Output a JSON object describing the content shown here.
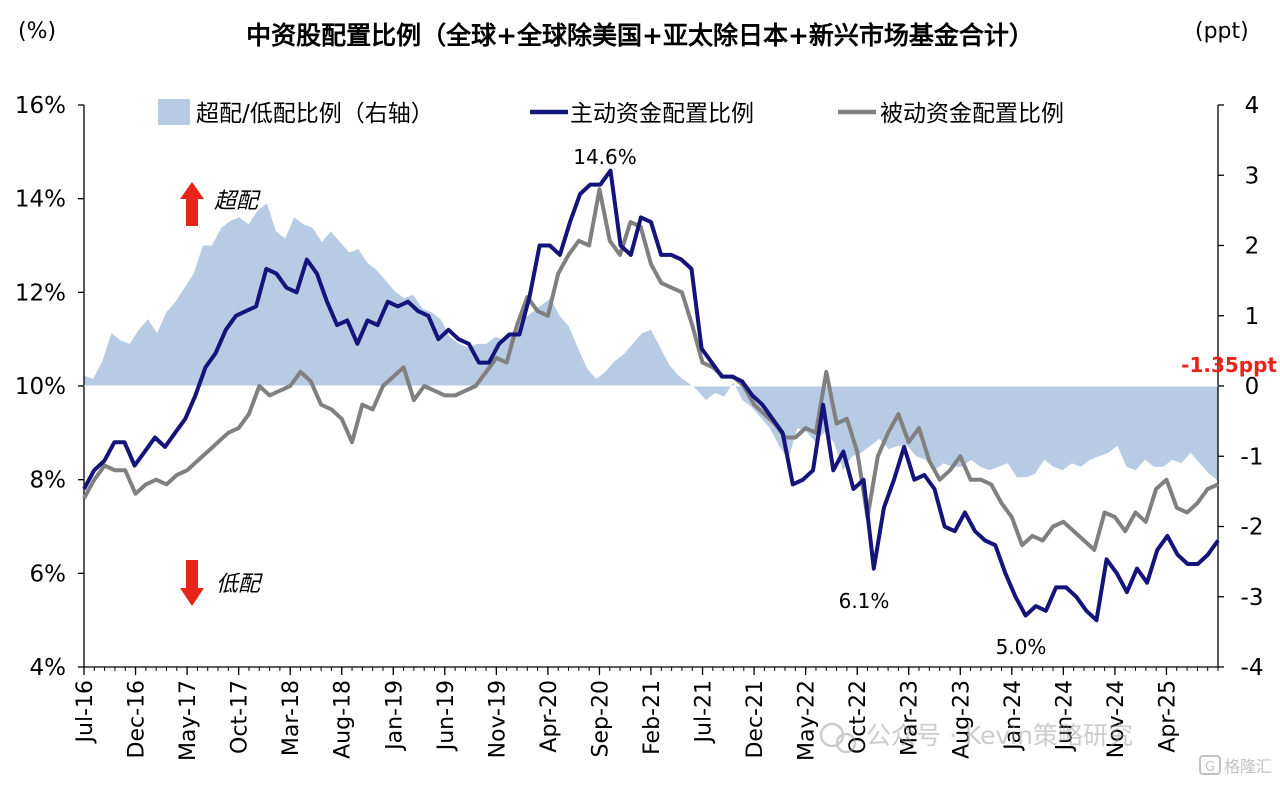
{
  "chart_data": {
    "type": "line",
    "title": "中资股配置比例（全球+全球除美国+亚太除日本+新兴市场基金合计）",
    "left_unit": "(%)",
    "right_unit": "(ppt)",
    "ylim_left": [
      4,
      16
    ],
    "ylim_right": [
      -4,
      4
    ],
    "left_ticks": [
      "4%",
      "6%",
      "8%",
      "10%",
      "12%",
      "14%",
      "16%"
    ],
    "right_ticks": [
      "-4",
      "-3",
      "-2",
      "-1",
      "0",
      "1",
      "2",
      "3",
      "4"
    ],
    "x_tick_labels": [
      "Jul-16",
      "Dec-16",
      "May-17",
      "Oct-17",
      "Mar-18",
      "Aug-18",
      "Jan-19",
      "Jun-19",
      "Nov-19",
      "Apr-20",
      "Sep-20",
      "Feb-21",
      "Jul-21",
      "Dec-21",
      "May-22",
      "Oct-22",
      "Mar-23",
      "Aug-23",
      "Jan-24",
      "Jun-24",
      "Nov-24",
      "Apr-25"
    ],
    "x_start": "2016-07",
    "x_end": "2025-09",
    "legend": [
      "超配/低配比例（右轴）",
      "主动资金配置比例",
      "被动资金配置比例"
    ],
    "colors": {
      "area": "#b7cbe5",
      "active": "#14147a",
      "passive": "#808080",
      "annotation_red": "#e8231a",
      "axis": "#000000"
    },
    "annotations": {
      "overweight": "超配",
      "underweight": "低配",
      "peak": "14.6%",
      "trough1": "6.1%",
      "trough2": "5.0%",
      "latest_diff": "-1.35ppt"
    },
    "series": [
      {
        "name": "超配/低配比例（右轴）",
        "axis": "right",
        "values": [
          0.15,
          0.1,
          0.35,
          0.75,
          0.65,
          0.6,
          0.8,
          0.95,
          0.75,
          1.05,
          1.2,
          1.4,
          1.6,
          2.0,
          2.0,
          2.25,
          2.35,
          2.4,
          2.3,
          2.5,
          2.6,
          2.2,
          2.1,
          2.4,
          2.3,
          2.25,
          2.05,
          2.2,
          2.05,
          1.9,
          1.95,
          1.75,
          1.65,
          1.5,
          1.35,
          1.25,
          1.3,
          1.1,
          1.05,
          0.95,
          0.7,
          0.6,
          0.55,
          0.6,
          0.6,
          0.7,
          0.65,
          0.8,
          0.95,
          1.05,
          1.15,
          1.25,
          1.0,
          0.85,
          0.55,
          0.25,
          0.1,
          0.2,
          0.35,
          0.45,
          0.6,
          0.75,
          0.8,
          0.55,
          0.3,
          0.15,
          0.05,
          -0.05,
          -0.2,
          -0.1,
          -0.15,
          0.05,
          -0.2,
          -0.3,
          -0.45,
          -0.6,
          -0.85,
          -1.05,
          -0.6,
          -0.65,
          -0.8,
          -0.65,
          -0.8,
          -1.2,
          -1.0,
          -0.95,
          -0.85,
          -0.75,
          -0.9,
          -0.85,
          -0.85,
          -1.0,
          -1.05,
          -1.2,
          -1.1,
          -1.15,
          -1.15,
          -1.05,
          -1.15,
          -1.2,
          -1.15,
          -1.1,
          -1.3,
          -1.3,
          -1.25,
          -1.05,
          -1.15,
          -1.2,
          -1.1,
          -1.15,
          -1.05,
          -1.0,
          -0.95,
          -0.85,
          -1.15,
          -1.2,
          -1.05,
          -1.15,
          -1.15,
          -1.05,
          -1.1,
          -0.95,
          -1.1,
          -1.25,
          -1.35
        ]
      },
      {
        "name": "主动资金配置比例",
        "axis": "left",
        "values": [
          7.8,
          8.2,
          8.4,
          8.8,
          8.8,
          8.3,
          8.6,
          8.9,
          8.7,
          9.0,
          9.3,
          9.8,
          10.4,
          10.7,
          11.2,
          11.5,
          11.6,
          11.7,
          12.5,
          12.4,
          12.1,
          12.0,
          12.7,
          12.4,
          11.8,
          11.3,
          11.4,
          10.9,
          11.4,
          11.3,
          11.8,
          11.7,
          11.8,
          11.6,
          11.5,
          11.0,
          11.2,
          11.0,
          10.9,
          10.5,
          10.5,
          10.9,
          11.1,
          11.1,
          11.9,
          13.0,
          13.0,
          12.8,
          13.5,
          14.1,
          14.3,
          14.3,
          14.6,
          13.0,
          12.8,
          13.6,
          13.5,
          12.8,
          12.8,
          12.7,
          12.5,
          10.8,
          10.5,
          10.2,
          10.2,
          10.1,
          9.8,
          9.6,
          9.3,
          9.0,
          7.9,
          8.0,
          8.2,
          9.6,
          8.2,
          8.6,
          7.8,
          8.0,
          6.1,
          7.4,
          8.0,
          8.7,
          8.0,
          8.1,
          7.8,
          7.0,
          6.9,
          7.3,
          6.9,
          6.7,
          6.6,
          6.0,
          5.5,
          5.1,
          5.3,
          5.2,
          5.7,
          5.7,
          5.5,
          5.2,
          5.0,
          6.3,
          6.0,
          5.6,
          6.1,
          5.8,
          6.5,
          6.8,
          6.4,
          6.2,
          6.2,
          6.4,
          6.7
        ]
      },
      {
        "name": "被动资金配置比例",
        "axis": "left",
        "values": [
          7.6,
          8.0,
          8.3,
          8.2,
          8.2,
          7.7,
          7.9,
          8.0,
          7.9,
          8.1,
          8.2,
          8.4,
          8.6,
          8.8,
          9.0,
          9.1,
          9.4,
          10.0,
          9.8,
          9.9,
          10.0,
          10.3,
          10.1,
          9.6,
          9.5,
          9.3,
          8.8,
          9.6,
          9.5,
          10.0,
          10.2,
          10.4,
          9.7,
          10.0,
          9.9,
          9.8,
          9.8,
          9.9,
          10.0,
          10.3,
          10.6,
          10.5,
          11.3,
          11.9,
          11.6,
          11.5,
          12.4,
          12.8,
          13.1,
          13.0,
          14.2,
          13.1,
          12.8,
          13.5,
          13.4,
          12.6,
          12.2,
          12.1,
          12.0,
          11.3,
          10.5,
          10.4,
          10.2,
          10.2,
          10.0,
          9.6,
          9.4,
          9.2,
          8.9,
          8.9,
          9.1,
          9.0,
          10.3,
          9.2,
          9.3,
          8.6,
          7.2,
          8.5,
          9.0,
          9.4,
          8.8,
          9.1,
          8.4,
          8.0,
          8.2,
          8.5,
          8.0,
          8.0,
          7.9,
          7.5,
          7.2,
          6.6,
          6.8,
          6.7,
          7.0,
          7.1,
          6.9,
          6.7,
          6.5,
          7.3,
          7.2,
          6.9,
          7.3,
          7.1,
          7.8,
          8.0,
          7.4,
          7.3,
          7.5,
          7.8,
          7.9
        ]
      }
    ]
  },
  "watermark": {
    "text": "公众号 · Kevin策略研究",
    "brand": "格隆汇",
    "logo_glyph": "G"
  }
}
